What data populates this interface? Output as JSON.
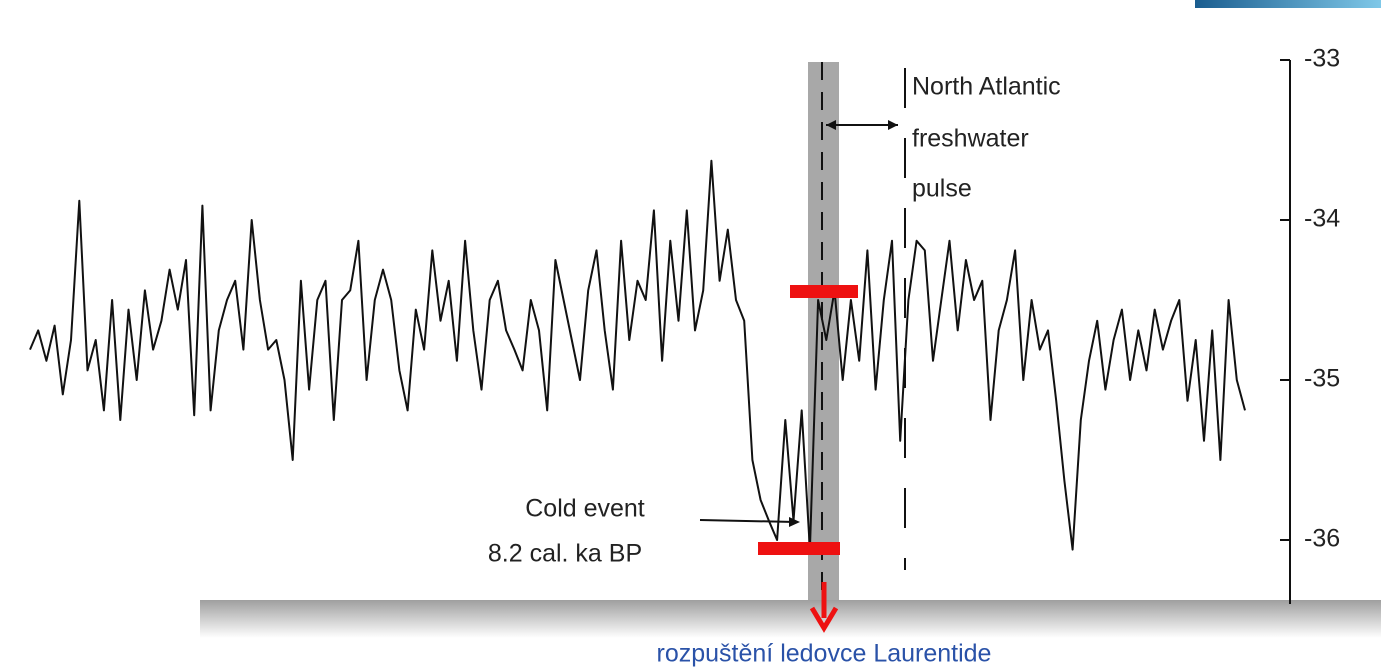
{
  "chart_data": {
    "type": "line",
    "color": "#111111",
    "values": [
      -34.81,
      -34.69,
      -34.88,
      -34.66,
      -35.09,
      -34.75,
      -33.88,
      -34.94,
      -34.75,
      -35.19,
      -34.5,
      -35.25,
      -34.56,
      -35.0,
      -34.44,
      -34.81,
      -34.63,
      -34.31,
      -34.56,
      -34.25,
      -35.22,
      -33.91,
      -35.19,
      -34.69,
      -34.5,
      -34.38,
      -34.81,
      -34.0,
      -34.5,
      -34.81,
      -34.75,
      -35.0,
      -35.5,
      -34.38,
      -35.06,
      -34.5,
      -34.38,
      -35.25,
      -34.5,
      -34.44,
      -34.13,
      -35.0,
      -34.5,
      -34.31,
      -34.5,
      -34.94,
      -35.19,
      -34.56,
      -34.81,
      -34.19,
      -34.63,
      -34.38,
      -34.88,
      -34.13,
      -34.69,
      -35.06,
      -34.5,
      -34.38,
      -34.69,
      -34.81,
      -34.94,
      -34.5,
      -34.69,
      -35.19,
      -34.25,
      -34.5,
      -34.75,
      -35.0,
      -34.44,
      -34.19,
      -34.69,
      -35.06,
      -34.13,
      -34.75,
      -34.38,
      -34.5,
      -33.94,
      -34.88,
      -34.13,
      -34.63,
      -33.94,
      -34.69,
      -34.44,
      -33.63,
      -34.38,
      -34.06,
      -34.5,
      -34.63,
      -35.5,
      -35.75,
      -35.88,
      -36.0,
      -35.25,
      -35.88,
      -35.19,
      -36.06,
      -34.5,
      -34.75,
      -34.44,
      -35.0,
      -34.5,
      -34.88,
      -34.19,
      -35.06,
      -34.5,
      -34.13,
      -35.38,
      -34.5,
      -34.13,
      -34.19,
      -34.88,
      -34.5,
      -34.13,
      -34.69,
      -34.25,
      -34.5,
      -34.38,
      -35.25,
      -34.69,
      -34.5,
      -34.19,
      -35.0,
      -34.5,
      -34.81,
      -34.69,
      -35.13,
      -35.63,
      -36.06,
      -35.25,
      -34.88,
      -34.63,
      -35.06,
      -34.75,
      -34.56,
      -35.0,
      -34.69,
      -34.94,
      -34.56,
      -34.81,
      -34.63,
      -34.5,
      -35.13,
      -34.75,
      -35.38,
      -34.69,
      -35.5,
      -34.5,
      -35.0,
      -35.19
    ],
    "ylim": [
      -36.4,
      -33
    ],
    "yticks": [
      -36,
      -35,
      -34,
      -33
    ],
    "annotations": [
      "North Atlantic",
      "freshwater",
      "pulse",
      "Cold event",
      "8.2 cal. ka BP"
    ],
    "caption": "rozpuštění ledovce Laurentide"
  }
}
